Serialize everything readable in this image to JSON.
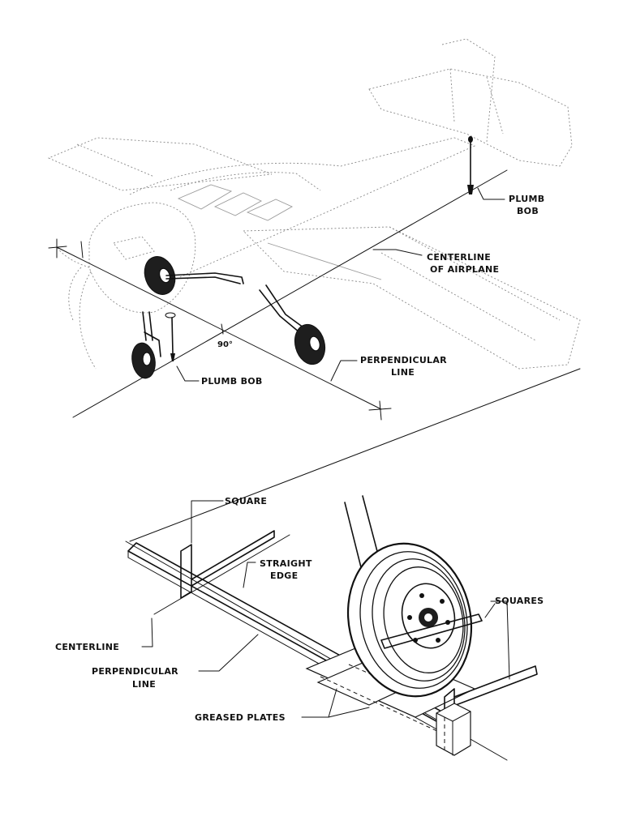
{
  "figure": {
    "top_view": {
      "plumb_bob_tail": [
        "PLUMB",
        "BOB"
      ],
      "centerline_airplane": [
        "CENTERLINE",
        "OF AIRPLANE"
      ],
      "angle": "90°",
      "perpendicular_line": [
        "PERPENDICULAR",
        "LINE"
      ],
      "plumb_bob_nose": "PLUMB BOB"
    },
    "detail_view": {
      "square": "SQUARE",
      "straight_edge": [
        "STRAIGHT",
        "EDGE"
      ],
      "squares": "SQUARES",
      "centerline": "CENTERLINE",
      "perpendicular_line": [
        "PERPENDICULAR",
        "LINE"
      ],
      "greased_plates": "GREASED PLATES"
    }
  }
}
